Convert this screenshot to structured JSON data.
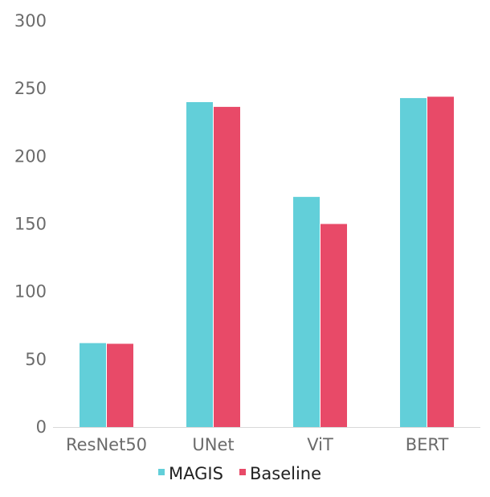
{
  "chart_data": {
    "type": "bar",
    "categories": [
      "ResNet50",
      "UNet",
      "ViT",
      "BERT"
    ],
    "series": [
      {
        "name": "MAGIS",
        "values": [
          62,
          240,
          170,
          243
        ],
        "color": "#62CFD9"
      },
      {
        "name": "Baseline",
        "values": [
          61.5,
          236.5,
          150,
          244
        ],
        "color": "#E84A68"
      }
    ],
    "y_ticks": [
      "0",
      "50",
      "100",
      "150",
      "200",
      "250",
      "300"
    ],
    "ylim": [
      0,
      300
    ],
    "grid": false,
    "legend_position": "bottom-center",
    "title": "",
    "xlabel": "",
    "ylabel": ""
  }
}
